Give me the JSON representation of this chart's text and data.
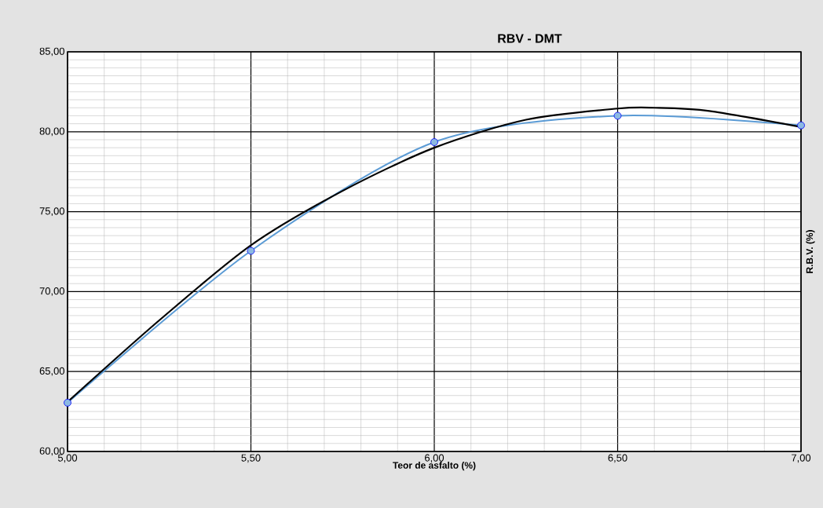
{
  "chart_data": {
    "type": "line",
    "title": "RBV - DMT",
    "xlabel": "Teor de asfalto (%)",
    "ylabel": "R.B.V. (%)",
    "x": [
      5.0,
      5.5,
      6.0,
      6.5,
      7.0
    ],
    "series": [
      {
        "type": "line",
        "marker": "circle",
        "color": "#5b9bd5",
        "values": [
          63.05,
          72.55,
          79.35,
          81.0,
          80.4
        ]
      },
      {
        "type": "line",
        "marker": "none",
        "color": "#000000",
        "x": [
          5.0,
          5.25,
          5.5,
          5.75,
          6.0,
          6.25,
          6.5,
          6.6,
          6.75,
          7.0
        ],
        "values": [
          63.1,
          68.2,
          72.9,
          76.3,
          79.0,
          80.75,
          81.45,
          81.5,
          81.3,
          80.3
        ]
      }
    ],
    "xlim": [
      5.0,
      7.0
    ],
    "ylim": [
      60.0,
      85.0
    ],
    "xticks": [
      {
        "value": 5.0,
        "label": "5,00"
      },
      {
        "value": 5.5,
        "label": "5,50"
      },
      {
        "value": 6.0,
        "label": "6,00"
      },
      {
        "value": 6.5,
        "label": "6,50"
      },
      {
        "value": 7.0,
        "label": "7,00"
      }
    ],
    "yticks": [
      {
        "value": 60,
        "label": "60,00"
      },
      {
        "value": 65,
        "label": "65,00"
      },
      {
        "value": 70,
        "label": "70,00"
      },
      {
        "value": 75,
        "label": "75,00"
      },
      {
        "value": 80,
        "label": "80,00"
      },
      {
        "value": 85,
        "label": "85,00"
      }
    ],
    "grid": true
  }
}
